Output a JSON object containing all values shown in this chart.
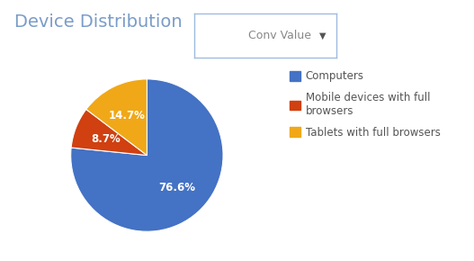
{
  "title": "Device Distribution",
  "dropdown_label": "Conv Value",
  "slices": [
    76.6,
    8.7,
    14.7
  ],
  "labels": [
    "Computers",
    "Mobile devices with full\nbrowsers",
    "Tablets with full browsers"
  ],
  "colors": [
    "#4472c4",
    "#d04010",
    "#f0a818"
  ],
  "pct_labels": [
    "76.6%",
    "8.7%",
    "14.7%"
  ],
  "pct_colors": [
    "white",
    "white",
    "white"
  ],
  "startangle": 90,
  "title_color": "#7a9cc8",
  "title_fontsize": 14,
  "legend_fontsize": 8.5,
  "background_color": "#ffffff"
}
